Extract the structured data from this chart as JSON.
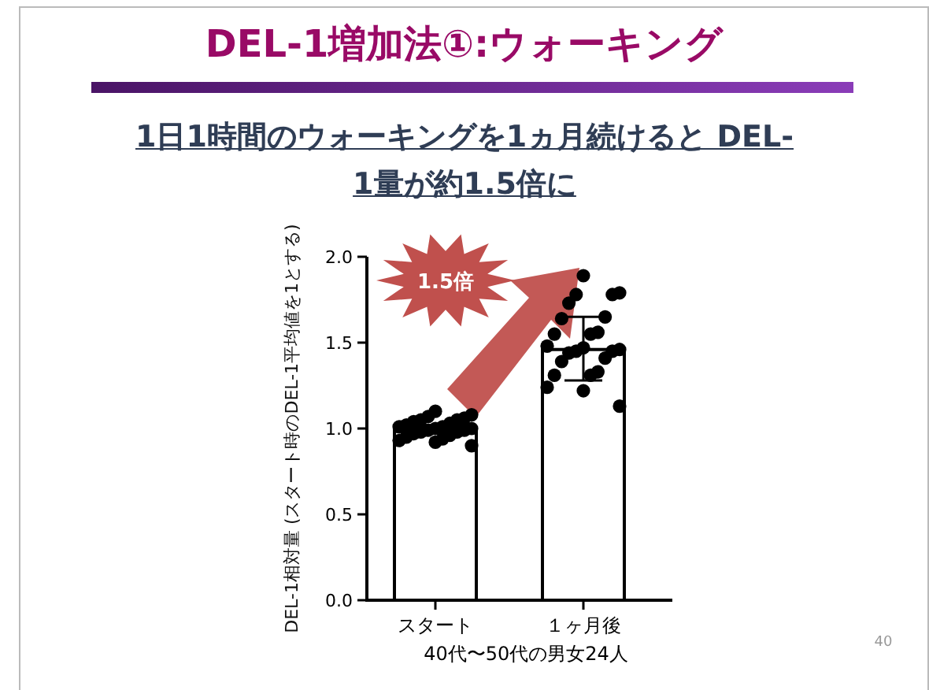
{
  "chart_data": {
    "type": "bar",
    "title": "DEL-1増加法①:ウォーキング",
    "subtitle": "1日1時間のウォーキングを1ヵ月続けると DEL-1量が約1.5倍に",
    "xlabel": "40代〜50代の男女24人",
    "ylabel": "DEL-1相対量 (スタート時のDEL-1平均値を1とする)",
    "categories": [
      "スタート",
      "１ヶ月後"
    ],
    "series": [
      {
        "color": "#ffffff",
        "values": [
          1.0,
          1.46
        ],
        "errors": [
          null,
          [
            1.28,
            1.65
          ]
        ]
      },
      {
        "type": "scatter",
        "color": "#000000",
        "x": [
          "スタート",
          "スタート",
          "スタート",
          "スタート",
          "スタート",
          "スタート",
          "スタート",
          "スタート",
          "スタート",
          "スタート",
          "スタート",
          "スタート",
          "スタート",
          "スタート",
          "スタート",
          "スタート",
          "スタート",
          "スタート",
          "スタート",
          "スタート",
          "スタート",
          "スタート",
          "スタート",
          "スタート",
          "１ヶ月後",
          "１ヶ月後",
          "１ヶ月後",
          "１ヶ月後",
          "１ヶ月後",
          "１ヶ月後",
          "１ヶ月後",
          "１ヶ月後",
          "１ヶ月後",
          "１ヶ月後",
          "１ヶ月後",
          "１ヶ月後",
          "１ヶ月後",
          "１ヶ月後",
          "１ヶ月後",
          "１ヶ月後",
          "１ヶ月後",
          "１ヶ月後",
          "１ヶ月後",
          "１ヶ月後",
          "１ヶ月後",
          "１ヶ月後",
          "１ヶ月後",
          "１ヶ月後"
        ],
        "values": [
          1.1,
          1.08,
          1.07,
          1.06,
          1.05,
          1.05,
          1.04,
          1.03,
          1.02,
          1.01,
          1.01,
          1.0,
          1.0,
          0.99,
          0.99,
          0.98,
          0.98,
          0.97,
          0.96,
          0.95,
          0.94,
          0.93,
          0.92,
          0.9,
          1.89,
          1.79,
          1.78,
          1.78,
          1.73,
          1.65,
          1.64,
          1.56,
          1.55,
          1.55,
          1.48,
          1.47,
          1.46,
          1.45,
          1.45,
          1.44,
          1.41,
          1.39,
          1.33,
          1.31,
          1.31,
          1.24,
          1.22,
          1.13
        ]
      }
    ],
    "ylim": [
      0,
      2
    ],
    "yticks": [
      {
        "value": 0,
        "label": "0.0"
      },
      {
        "value": 0.5,
        "label": "0.5"
      },
      {
        "value": 1,
        "label": "1.0"
      },
      {
        "value": 1.5,
        "label": "1.5"
      },
      {
        "value": 2,
        "label": "2.0"
      }
    ],
    "annotations": [
      "1.5倍",
      "40"
    ],
    "grid": false
  }
}
